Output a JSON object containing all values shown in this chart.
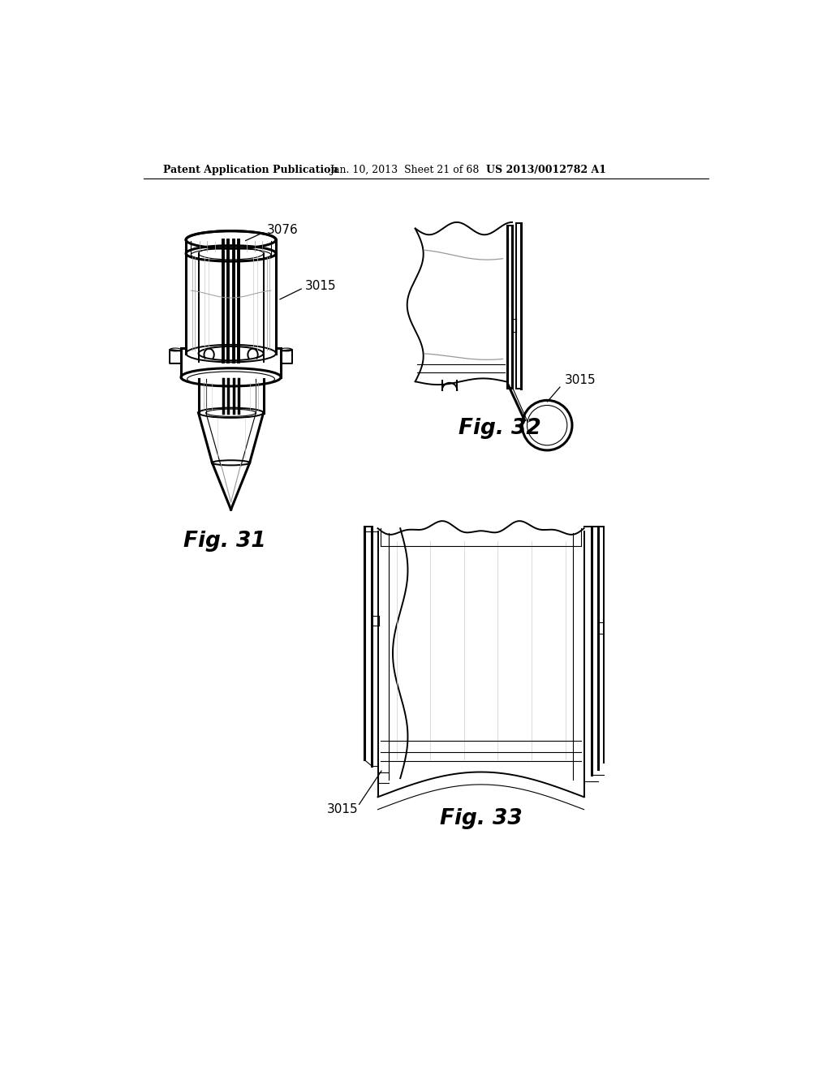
{
  "bg_color": "#ffffff",
  "header_text1": "Patent Application Publication",
  "header_text2": "Jan. 10, 2013  Sheet 21 of 68",
  "header_text3": "US 2013/0012782 A1",
  "fig31_label": "Fig. 31",
  "fig32_label": "Fig. 32",
  "fig33_label": "Fig. 33",
  "label_3076": "3076",
  "label_3015": "3015",
  "line_color": "#000000",
  "gray_light": "#cccccc",
  "gray_med": "#999999",
  "gray_dark": "#666666",
  "lw_thick": 2.2,
  "lw_thin": 0.8,
  "lw_medium": 1.4
}
